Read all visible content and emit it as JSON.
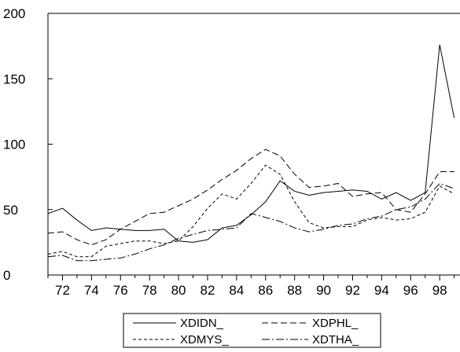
{
  "chart_data": {
    "type": "line",
    "x": [
      1971,
      1972,
      1973,
      1974,
      1975,
      1976,
      1977,
      1978,
      1979,
      1980,
      1981,
      1982,
      1983,
      1984,
      1985,
      1986,
      1987,
      1988,
      1989,
      1990,
      1991,
      1992,
      1993,
      1994,
      1995,
      1996,
      1997,
      1998,
      1999
    ],
    "x_tick_labels": [
      "72",
      "74",
      "76",
      "78",
      "80",
      "82",
      "84",
      "86",
      "88",
      "90",
      "92",
      "94",
      "96",
      "98"
    ],
    "x_tick_values": [
      1972,
      1974,
      1976,
      1978,
      1980,
      1982,
      1984,
      1986,
      1988,
      1990,
      1992,
      1994,
      1996,
      1998
    ],
    "xlim": [
      1971,
      1999.4
    ],
    "ylim": [
      0,
      200
    ],
    "y_ticks": [
      0,
      50,
      100,
      150,
      200
    ],
    "y_tick_labels": [
      "0",
      "50",
      "100",
      "150",
      "200"
    ],
    "grid": false,
    "legend_placement": "bottom",
    "series": [
      {
        "name": "XDIDN_",
        "style": "solid",
        "values": [
          47,
          51,
          42,
          34,
          36,
          35,
          34,
          34,
          35,
          26,
          25,
          27,
          36,
          38,
          46,
          56,
          72,
          64,
          61,
          63,
          64,
          65,
          64,
          58,
          63,
          57,
          63,
          176,
          120
        ]
      },
      {
        "name": "XDPHL_",
        "style": "dashed",
        "values": [
          32,
          33,
          27,
          23,
          27,
          35,
          41,
          47,
          48,
          53,
          58,
          65,
          73,
          80,
          89,
          96,
          91,
          77,
          67,
          68,
          70,
          60,
          62,
          63,
          50,
          48,
          62,
          79,
          79
        ]
      },
      {
        "name": "XDMYS_",
        "style": "short-dash",
        "values": [
          16,
          18,
          14,
          14,
          22,
          24,
          26,
          26,
          24,
          26,
          37,
          51,
          62,
          58,
          70,
          84,
          77,
          56,
          40,
          36,
          37,
          37,
          42,
          44,
          42,
          43,
          48,
          68,
          62
        ]
      },
      {
        "name": "XDTHA_",
        "style": "dash-dot",
        "values": [
          14,
          15,
          11,
          11,
          12,
          13,
          16,
          20,
          23,
          28,
          31,
          34,
          35,
          36,
          47,
          44,
          41,
          36,
          33,
          35,
          38,
          39,
          43,
          45,
          50,
          52,
          58,
          70,
          66
        ]
      }
    ]
  }
}
